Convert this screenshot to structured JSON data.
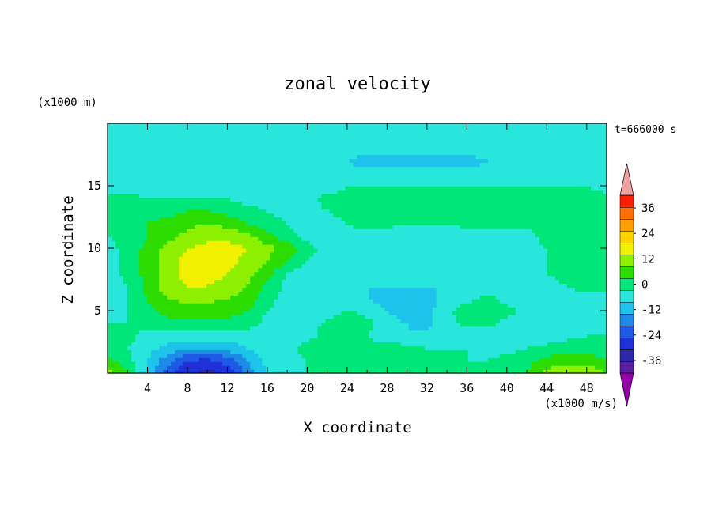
{
  "chart_data": {
    "type": "heatmap",
    "title": "zonal velocity",
    "xlabel": "X coordinate",
    "ylabel": "Z coordinate",
    "x_unit": "(x1000 m/s)",
    "y_unit": "(x1000 m)",
    "time_label": "t=666000 s",
    "xlim": [
      0,
      50
    ],
    "ylim": [
      0,
      20
    ],
    "x_ticks": [
      "4",
      "8",
      "12",
      "16",
      "20",
      "24",
      "28",
      "32",
      "36",
      "40",
      "44",
      "48"
    ],
    "y_ticks": [
      "5",
      "10",
      "15"
    ],
    "colorbar": {
      "levels": [
        -42,
        -36,
        -30,
        -24,
        -18,
        -12,
        -6,
        0,
        6,
        12,
        18,
        24,
        30,
        36,
        42
      ],
      "tick_labels": [
        "36",
        "24",
        "12",
        "0",
        "-12",
        "-24",
        "-36"
      ],
      "colors": [
        "#5a1ea0",
        "#2d28a8",
        "#1e32d8",
        "#1e5ae6",
        "#1e8ce6",
        "#1ec3eb",
        "#28e6dc",
        "#00e678",
        "#2ddc00",
        "#8cf000",
        "#f0f000",
        "#ffd200",
        "#ffa000",
        "#ff6e00",
        "#ff1e00"
      ],
      "over_color": "#f0a0a0",
      "under_color": "#9600aa"
    },
    "field_x": [
      0,
      2,
      4,
      6,
      8,
      10,
      12,
      14,
      16,
      18,
      20,
      22,
      24,
      26,
      28,
      30,
      32,
      34,
      36,
      38,
      40,
      42,
      44,
      46,
      48,
      50
    ],
    "field_z": [
      0,
      1,
      2,
      3,
      4,
      5,
      6,
      7,
      8,
      9,
      10,
      11,
      12,
      13,
      14,
      15,
      16,
      17,
      18,
      19,
      20
    ],
    "field_values": [
      [
        14,
        8,
        -8,
        -22,
        -30,
        -32,
        -28,
        -16,
        -6,
        -2,
        0,
        2,
        2,
        2,
        2,
        2,
        2,
        2,
        2,
        2,
        2,
        6,
        14,
        18,
        18,
        12
      ],
      [
        8,
        2,
        -6,
        -16,
        -24,
        -26,
        -22,
        -12,
        -4,
        -2,
        0,
        2,
        4,
        6,
        4,
        2,
        2,
        2,
        0,
        0,
        2,
        4,
        8,
        10,
        10,
        6
      ],
      [
        4,
        0,
        -4,
        -8,
        -12,
        -12,
        -10,
        -6,
        -2,
        -2,
        2,
        4,
        4,
        2,
        4,
        2,
        0,
        0,
        0,
        -2,
        -2,
        0,
        2,
        4,
        4,
        2
      ],
      [
        2,
        2,
        -2,
        -2,
        -2,
        -2,
        -2,
        -2,
        -2,
        -4,
        -2,
        2,
        4,
        0,
        -4,
        -6,
        -4,
        -2,
        -6,
        -4,
        -2,
        -2,
        -4,
        -2,
        0,
        0
      ],
      [
        0,
        0,
        2,
        4,
        4,
        4,
        4,
        2,
        -2,
        -4,
        -4,
        2,
        6,
        2,
        -4,
        -6,
        -8,
        -2,
        2,
        2,
        -2,
        -4,
        -6,
        -4,
        -2,
        0
      ],
      [
        -2,
        0,
        4,
        8,
        8,
        8,
        8,
        6,
        0,
        -4,
        -6,
        -4,
        0,
        -2,
        -6,
        -8,
        -8,
        -2,
        4,
        6,
        2,
        -2,
        -4,
        -4,
        -2,
        -2
      ],
      [
        -4,
        0,
        6,
        12,
        14,
        14,
        12,
        10,
        2,
        -2,
        -6,
        -6,
        -6,
        -6,
        -8,
        -8,
        -8,
        -4,
        -2,
        2,
        -2,
        -4,
        -4,
        -2,
        -2,
        -2
      ],
      [
        -4,
        0,
        8,
        16,
        18,
        18,
        16,
        12,
        4,
        -2,
        -6,
        -6,
        -6,
        -6,
        -6,
        -6,
        -6,
        -6,
        -4,
        -4,
        -4,
        -4,
        -2,
        0,
        2,
        2
      ],
      [
        -4,
        2,
        8,
        16,
        20,
        20,
        18,
        14,
        8,
        0,
        -4,
        -6,
        -6,
        -6,
        -6,
        -6,
        -6,
        -6,
        -4,
        -4,
        -4,
        -2,
        0,
        2,
        4,
        2
      ],
      [
        -2,
        2,
        8,
        16,
        20,
        20,
        20,
        16,
        12,
        6,
        0,
        -4,
        -6,
        -6,
        -6,
        -6,
        -6,
        -6,
        -4,
        -4,
        -4,
        -2,
        0,
        2,
        4,
        2
      ],
      [
        -2,
        2,
        8,
        14,
        18,
        20,
        20,
        18,
        14,
        10,
        2,
        -2,
        -4,
        -4,
        -6,
        -6,
        -6,
        -6,
        -4,
        -4,
        -2,
        -2,
        0,
        2,
        2,
        2
      ],
      [
        0,
        2,
        6,
        10,
        14,
        16,
        16,
        14,
        8,
        2,
        -2,
        -2,
        -2,
        -2,
        -4,
        -4,
        -4,
        -4,
        -2,
        -2,
        -2,
        -2,
        2,
        2,
        2,
        2
      ],
      [
        2,
        4,
        6,
        8,
        10,
        12,
        10,
        6,
        2,
        0,
        -2,
        -2,
        0,
        2,
        2,
        0,
        0,
        0,
        2,
        2,
        2,
        2,
        2,
        4,
        4,
        2
      ],
      [
        4,
        4,
        4,
        4,
        6,
        6,
        4,
        2,
        0,
        -2,
        -2,
        0,
        2,
        2,
        2,
        2,
        2,
        2,
        2,
        2,
        2,
        2,
        2,
        2,
        2,
        2
      ],
      [
        2,
        2,
        0,
        0,
        0,
        0,
        0,
        -2,
        -2,
        -2,
        -2,
        2,
        2,
        2,
        2,
        2,
        2,
        4,
        4,
        4,
        4,
        4,
        4,
        4,
        2,
        2
      ],
      [
        -2,
        -2,
        -4,
        -4,
        -4,
        -4,
        -4,
        -4,
        -4,
        -4,
        -4,
        -4,
        0,
        0,
        0,
        0,
        0,
        0,
        0,
        0,
        0,
        0,
        0,
        0,
        0,
        -2
      ],
      [
        -4,
        -4,
        -4,
        -4,
        -4,
        -4,
        -4,
        -4,
        -4,
        -4,
        -4,
        -4,
        -4,
        -4,
        -4,
        -4,
        -4,
        -4,
        -4,
        -4,
        -4,
        -4,
        -4,
        -4,
        -4,
        -4
      ],
      [
        -4,
        -4,
        -4,
        -4,
        -4,
        -4,
        -4,
        -4,
        -4,
        -6,
        -6,
        -6,
        -6,
        -8,
        -8,
        -8,
        -8,
        -8,
        -8,
        -6,
        -6,
        -6,
        -6,
        -6,
        -4,
        -4
      ],
      [
        -4,
        -4,
        -4,
        -4,
        -4,
        -4,
        -4,
        -4,
        -4,
        -4,
        -4,
        -4,
        -4,
        -4,
        -4,
        -4,
        -4,
        -4,
        -4,
        -4,
        -4,
        -4,
        -4,
        -4,
        -4,
        -4
      ],
      [
        -2,
        -2,
        -2,
        -2,
        -2,
        -2,
        -2,
        -2,
        -2,
        -2,
        -2,
        -2,
        -2,
        -2,
        -2,
        -2,
        -2,
        -2,
        -2,
        -2,
        -2,
        -2,
        -2,
        -2,
        -2,
        -2
      ],
      [
        -2,
        -2,
        -2,
        -2,
        -2,
        -2,
        -2,
        -2,
        -2,
        -2,
        -2,
        -2,
        -2,
        -2,
        -2,
        -2,
        -2,
        -2,
        -2,
        -2,
        -2,
        -2,
        -2,
        -2,
        -2,
        -2
      ]
    ]
  }
}
